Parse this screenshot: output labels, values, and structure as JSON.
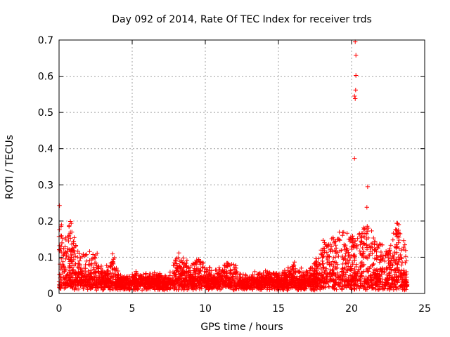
{
  "chart_data": {
    "type": "scatter",
    "title": "Day 092 of 2014, Rate Of TEC Index for receiver trds",
    "xlabel": "GPS time / hours",
    "ylabel": "ROTI / TECUs",
    "xlim": [
      0,
      25
    ],
    "ylim": [
      0,
      0.7
    ],
    "xticks": [
      0,
      5,
      10,
      15,
      20,
      25
    ],
    "yticks": [
      0,
      0.1,
      0.2,
      0.3,
      0.4,
      0.5,
      0.6,
      0.7
    ],
    "xtick_labels": [
      "0",
      "5",
      "10",
      "15",
      "20",
      "25"
    ],
    "ytick_labels": [
      "0",
      "0.1",
      "0.2",
      "0.3",
      "0.4",
      "0.5",
      "0.6",
      "0.7"
    ],
    "grid": true,
    "marker": "+",
    "series_color": "#ff0000",
    "data_range_hours": [
      0,
      23.8
    ],
    "baseline_roti": 0.03,
    "activity_envelope": [
      {
        "hour": 0.0,
        "max": 0.26
      },
      {
        "hour": 0.3,
        "max": 0.15
      },
      {
        "hour": 0.8,
        "max": 0.21
      },
      {
        "hour": 1.2,
        "max": 0.12
      },
      {
        "hour": 1.8,
        "max": 0.12
      },
      {
        "hour": 2.5,
        "max": 0.12
      },
      {
        "hour": 3.0,
        "max": 0.06
      },
      {
        "hour": 3.7,
        "max": 0.11
      },
      {
        "hour": 4.2,
        "max": 0.05
      },
      {
        "hour": 6.0,
        "max": 0.06
      },
      {
        "hour": 7.5,
        "max": 0.05
      },
      {
        "hour": 8.2,
        "max": 0.12
      },
      {
        "hour": 9.0,
        "max": 0.08
      },
      {
        "hour": 9.8,
        "max": 0.11
      },
      {
        "hour": 10.5,
        "max": 0.06
      },
      {
        "hour": 11.5,
        "max": 0.09
      },
      {
        "hour": 13.0,
        "max": 0.05
      },
      {
        "hour": 14.0,
        "max": 0.07
      },
      {
        "hour": 15.0,
        "max": 0.05
      },
      {
        "hour": 16.2,
        "max": 0.09
      },
      {
        "hour": 17.0,
        "max": 0.06
      },
      {
        "hour": 18.0,
        "max": 0.14
      },
      {
        "hour": 18.8,
        "max": 0.2
      },
      {
        "hour": 19.5,
        "max": 0.18
      },
      {
        "hour": 20.2,
        "max": 0.16
      },
      {
        "hour": 21.0,
        "max": 0.2
      },
      {
        "hour": 21.8,
        "max": 0.15
      },
      {
        "hour": 22.5,
        "max": 0.13
      },
      {
        "hour": 23.2,
        "max": 0.21
      },
      {
        "hour": 23.8,
        "max": 0.11
      }
    ],
    "outliers": [
      {
        "x": 20.25,
        "y": 0.695
      },
      {
        "x": 20.3,
        "y": 0.658
      },
      {
        "x": 20.3,
        "y": 0.602
      },
      {
        "x": 20.28,
        "y": 0.562
      },
      {
        "x": 20.2,
        "y": 0.545
      },
      {
        "x": 20.25,
        "y": 0.538
      },
      {
        "x": 20.2,
        "y": 0.373
      },
      {
        "x": 21.1,
        "y": 0.295
      },
      {
        "x": 21.05,
        "y": 0.238
      }
    ]
  }
}
